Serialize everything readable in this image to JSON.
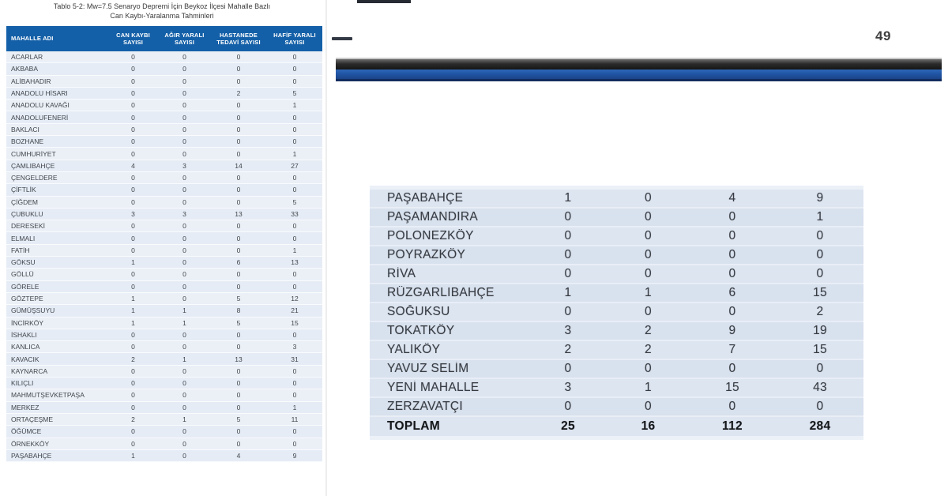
{
  "document": {
    "title_line1": "Tablo 5-2: Mw=7.5 Senaryo Depremi İçin Beykoz İlçesi Mahalle Bazlı",
    "title_line2": "Can Kaybı-Yaralanma Tahminleri",
    "page_number": "49"
  },
  "table": {
    "headers": [
      "MAHALLE ADI",
      "CAN KAYBI SAYISI",
      "AĞIR YARALI SAYISI",
      "HASTANEDE TEDAVİ SAYISI",
      "HAFİF YARALI SAYISI"
    ],
    "rows": [
      [
        "ACARLAR",
        0,
        0,
        0,
        0
      ],
      [
        "AKBABA",
        0,
        0,
        0,
        0
      ],
      [
        "ALİBAHADIR",
        0,
        0,
        0,
        0
      ],
      [
        "ANADOLU HİSARI",
        0,
        0,
        2,
        5
      ],
      [
        "ANADOLU KAVAĞI",
        0,
        0,
        0,
        1
      ],
      [
        "ANADOLUFENERİ",
        0,
        0,
        0,
        0
      ],
      [
        "BAKLACI",
        0,
        0,
        0,
        0
      ],
      [
        "BOZHANE",
        0,
        0,
        0,
        0
      ],
      [
        "CUMHURİYET",
        0,
        0,
        0,
        1
      ],
      [
        "ÇAMLIBAHÇE",
        4,
        3,
        14,
        27
      ],
      [
        "ÇENGELDERE",
        0,
        0,
        0,
        0
      ],
      [
        "ÇİFTLİK",
        0,
        0,
        0,
        0
      ],
      [
        "ÇİĞDEM",
        0,
        0,
        0,
        5
      ],
      [
        "ÇUBUKLU",
        3,
        3,
        13,
        33
      ],
      [
        "DERESEKİ",
        0,
        0,
        0,
        0
      ],
      [
        "ELMALI",
        0,
        0,
        0,
        0
      ],
      [
        "FATİH",
        0,
        0,
        0,
        1
      ],
      [
        "GÖKSU",
        1,
        0,
        6,
        13
      ],
      [
        "GÖLLÜ",
        0,
        0,
        0,
        0
      ],
      [
        "GÖRELE",
        0,
        0,
        0,
        0
      ],
      [
        "GÖZTEPE",
        1,
        0,
        5,
        12
      ],
      [
        "GÜMÜŞSUYU",
        1,
        1,
        8,
        21
      ],
      [
        "İNCİRKÖY",
        1,
        1,
        5,
        15
      ],
      [
        "İSHAKLI",
        0,
        0,
        0,
        0
      ],
      [
        "KANLICA",
        0,
        0,
        0,
        3
      ],
      [
        "KAVACIK",
        2,
        1,
        13,
        31
      ],
      [
        "KAYNARCA",
        0,
        0,
        0,
        0
      ],
      [
        "KILIÇLI",
        0,
        0,
        0,
        0
      ],
      [
        "MAHMUTŞEVKETPAŞA",
        0,
        0,
        0,
        0
      ],
      [
        "MERKEZ",
        0,
        0,
        0,
        1
      ],
      [
        "ORTAÇEŞME",
        2,
        1,
        5,
        11
      ],
      [
        "ÖĞÜMCE",
        0,
        0,
        0,
        0
      ],
      [
        "ÖRNEKKÖY",
        0,
        0,
        0,
        0
      ],
      [
        "PAŞABAHÇE",
        1,
        0,
        4,
        9
      ]
    ]
  },
  "magnified_table": {
    "rows": [
      [
        "PAŞABAHÇE",
        1,
        0,
        4,
        9
      ],
      [
        "PAŞAMANDIRA",
        0,
        0,
        0,
        1
      ],
      [
        "POLONEZKÖY",
        0,
        0,
        0,
        0
      ],
      [
        "POYRAZKÖY",
        0,
        0,
        0,
        0
      ],
      [
        "RİVA",
        0,
        0,
        0,
        0
      ],
      [
        "RÜZGARLIBAHÇE",
        1,
        1,
        6,
        15
      ],
      [
        "SOĞUKSU",
        0,
        0,
        0,
        2
      ],
      [
        "TOKATKÖY",
        3,
        2,
        9,
        19
      ],
      [
        "YALIKÖY",
        2,
        2,
        7,
        15
      ],
      [
        "YAVUZ SELİM",
        0,
        0,
        0,
        0
      ],
      [
        "YENİ MAHALLE",
        3,
        1,
        15,
        43
      ],
      [
        "ZERZAVATÇI",
        0,
        0,
        0,
        0
      ]
    ],
    "total": [
      "TOPLAM",
      25,
      16,
      112,
      284
    ]
  },
  "colors": {
    "header_blue": "#1460a8",
    "band_blue": "#2155a6",
    "row_light": "#ebf0f7",
    "row_mag": "#dde5f1"
  }
}
